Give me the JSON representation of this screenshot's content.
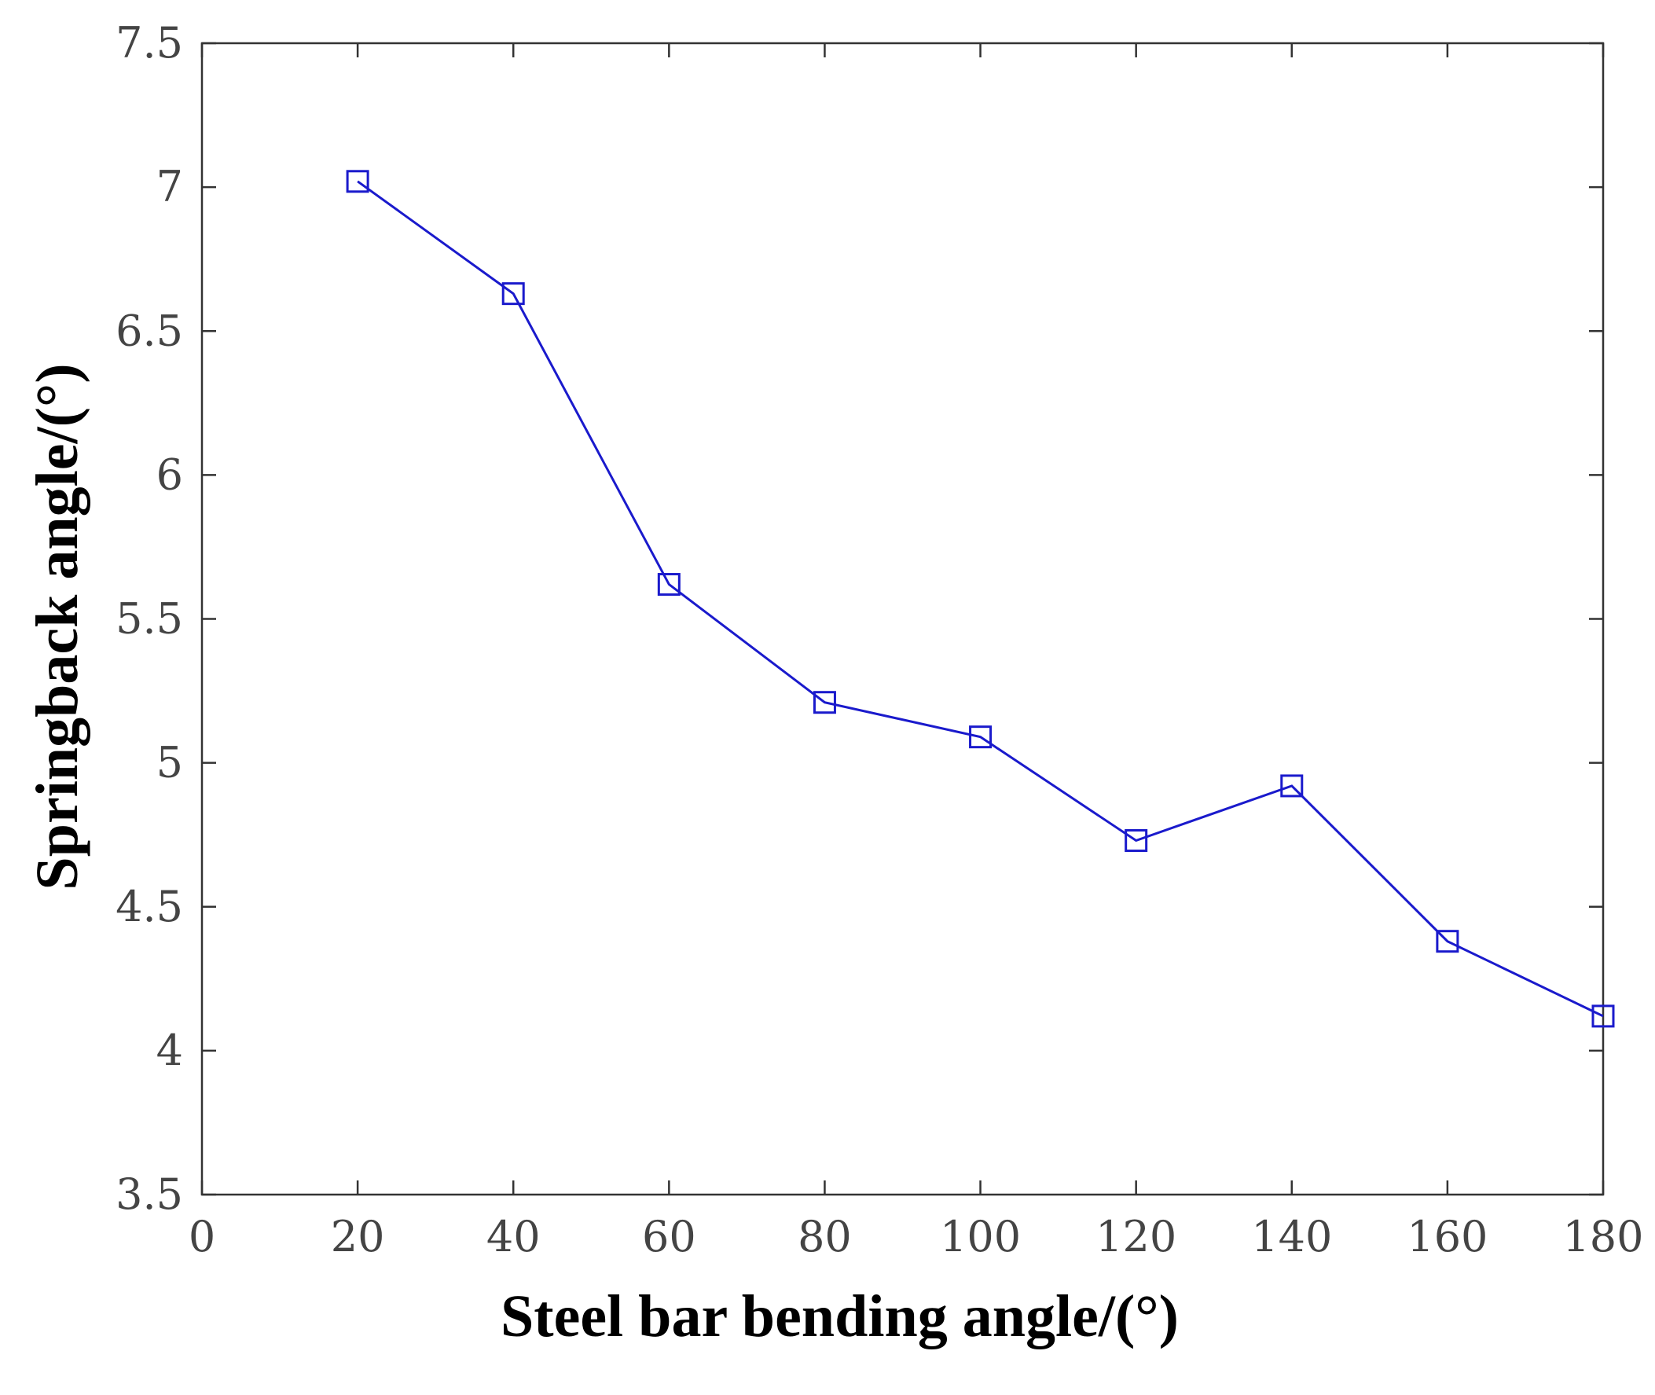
{
  "chart_data": {
    "type": "line",
    "title": "",
    "xlabel": "Steel bar bending angle/(°)",
    "ylabel": "Springback angle/(°)",
    "xlim": [
      0,
      180
    ],
    "ylim": [
      3.5,
      7.5
    ],
    "xticks": [
      0,
      20,
      40,
      60,
      80,
      100,
      120,
      140,
      160,
      180
    ],
    "yticks": [
      3.5,
      4,
      4.5,
      5,
      5.5,
      6,
      6.5,
      7,
      7.5
    ],
    "xtick_labels": [
      "0",
      "20",
      "40",
      "60",
      "80",
      "100",
      "120",
      "140",
      "160",
      "180"
    ],
    "ytick_labels": [
      "3.5",
      "4",
      "4.5",
      "5",
      "5.5",
      "6",
      "6.5",
      "7",
      "7.5"
    ],
    "grid": false,
    "series": [
      {
        "name": "Springback angle",
        "color": "#1a1acc",
        "marker": "square",
        "x": [
          20,
          40,
          60,
          80,
          100,
          120,
          140,
          160,
          180
        ],
        "y": [
          7.02,
          6.63,
          5.62,
          5.21,
          5.09,
          4.73,
          4.92,
          4.38,
          4.12
        ]
      }
    ]
  }
}
